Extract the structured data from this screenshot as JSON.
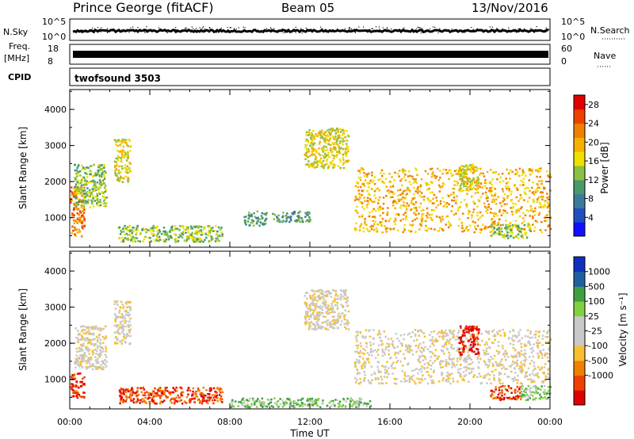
{
  "header": {
    "title": "Prince George (fitACF)",
    "beam": "Beam 05",
    "date": "13/Nov/2016"
  },
  "aux": {
    "nsky_label": "N.Sky",
    "nsky_ticks": [
      "10^5",
      "10^0"
    ],
    "nsearch_label": "N.Search",
    "nsearch_ticks": [
      "10^5",
      "10^0"
    ],
    "freq_label": "Freq.",
    "freq_unit": "[MHz]",
    "freq_ticks": [
      "18",
      "8"
    ],
    "nave_label": "Nave",
    "nave_ticks": [
      "60",
      "0"
    ],
    "cpid_label": "CPID",
    "cpid_value": "twofsound 3503"
  },
  "colors": {
    "power": [
      "#1010ff",
      "#2050c0",
      "#3c7a9c",
      "#4a9a6a",
      "#8cc040",
      "#f0e000",
      "#f8b000",
      "#f08000",
      "#f04000",
      "#e00000"
    ],
    "velocity": [
      "#e00000",
      "#f04000",
      "#f08000",
      "#f8c030",
      "#c8c8c8",
      "#c8c8c8",
      "#80d040",
      "#40a040",
      "#2060a0",
      "#1030c0"
    ]
  },
  "chart_data": [
    {
      "type": "heatmap",
      "panel": "power",
      "ylabel": "Slant Range [km]",
      "xlabel": "",
      "xlim": [
        "00:00",
        "00:00"
      ],
      "ylim": [
        180,
        4550
      ],
      "yticks": [
        "1000",
        "2000",
        "3000",
        "4000"
      ],
      "xticks": [
        "00:00",
        "04:00",
        "08:00",
        "12:00",
        "16:00",
        "20:00",
        "00:00"
      ],
      "colorbar": {
        "label": "Power [dB]",
        "ticks": [
          "4",
          "8",
          "12",
          "16",
          "20",
          "24",
          "28"
        ],
        "range": [
          0,
          30
        ]
      },
      "regions": [
        {
          "name": "near-echo-0000",
          "t": [
            0.0,
            0.7
          ],
          "r": [
            500,
            1900
          ],
          "power_db": 22
        },
        {
          "name": "arc-0100",
          "t": [
            0.2,
            1.8
          ],
          "r": [
            1300,
            2500
          ],
          "power_db": 14
        },
        {
          "name": "arc-0230",
          "t": [
            2.2,
            3.0
          ],
          "r": [
            2000,
            3200
          ],
          "power_db": 16
        },
        {
          "name": "low-0300-0700",
          "t": [
            2.4,
            7.6
          ],
          "r": [
            350,
            800
          ],
          "power_db": 12
        },
        {
          "name": "low-0900",
          "t": [
            8.6,
            9.8
          ],
          "r": [
            800,
            1200
          ],
          "power_db": 10
        },
        {
          "name": "low-1030",
          "t": [
            10.1,
            12.0
          ],
          "r": [
            900,
            1200
          ],
          "power_db": 9
        },
        {
          "name": "arc-1200",
          "t": [
            11.7,
            13.9
          ],
          "r": [
            2400,
            3500
          ],
          "power_db": 15
        },
        {
          "name": "main-band-1500-0000",
          "t": [
            14.2,
            24.0
          ],
          "r": [
            600,
            2400
          ],
          "power_db": 21
        },
        {
          "name": "patch-1930",
          "t": [
            19.4,
            20.4
          ],
          "r": [
            1700,
            2500
          ],
          "power_db": 16
        },
        {
          "name": "low-2100",
          "t": [
            21.0,
            23.0
          ],
          "r": [
            450,
            850
          ],
          "power_db": 14
        }
      ]
    },
    {
      "type": "heatmap",
      "panel": "velocity",
      "ylabel": "Slant Range [km]",
      "xlabel": "Time UT",
      "xlim": [
        "00:00",
        "00:00"
      ],
      "ylim": [
        180,
        4550
      ],
      "yticks": [
        "1000",
        "2000",
        "3000",
        "4000"
      ],
      "xticks": [
        "00:00",
        "04:00",
        "08:00",
        "12:00",
        "16:00",
        "20:00",
        "00:00"
      ],
      "colorbar": {
        "label": "Velocity [m s⁻¹]",
        "ticks": [
          "1000",
          "500",
          "100",
          "25",
          "-25",
          "-100",
          "-500",
          "-1000"
        ]
      },
      "regions": [
        {
          "name": "near-echo-0000",
          "t": [
            0.0,
            0.7
          ],
          "r": [
            500,
            1200
          ],
          "velocity": -200
        },
        {
          "name": "arc-0100",
          "t": [
            0.2,
            1.8
          ],
          "r": [
            1300,
            2500
          ],
          "velocity": 0
        },
        {
          "name": "arc-0230",
          "t": [
            2.2,
            3.0
          ],
          "r": [
            2000,
            3200
          ],
          "velocity": 0
        },
        {
          "name": "low-0300-0700",
          "t": [
            2.4,
            7.6
          ],
          "r": [
            350,
            800
          ],
          "velocity": -300
        },
        {
          "name": "low-0800-1500",
          "t": [
            8.0,
            15.0
          ],
          "r": [
            250,
            500
          ],
          "velocity": 100
        },
        {
          "name": "arc-1200",
          "t": [
            11.7,
            13.9
          ],
          "r": [
            2400,
            3500
          ],
          "velocity": 0
        },
        {
          "name": "main-band-1500-0000",
          "t": [
            14.2,
            24.0
          ],
          "r": [
            900,
            2400
          ],
          "velocity": 0
        },
        {
          "name": "patch-1930",
          "t": [
            19.4,
            20.4
          ],
          "r": [
            1700,
            2500
          ],
          "velocity": -600
        },
        {
          "name": "low-2100",
          "t": [
            21.0,
            22.5
          ],
          "r": [
            450,
            850
          ],
          "velocity": -300
        },
        {
          "name": "low-2230",
          "t": [
            22.5,
            24.0
          ],
          "r": [
            450,
            850
          ],
          "velocity": 150
        }
      ]
    }
  ]
}
